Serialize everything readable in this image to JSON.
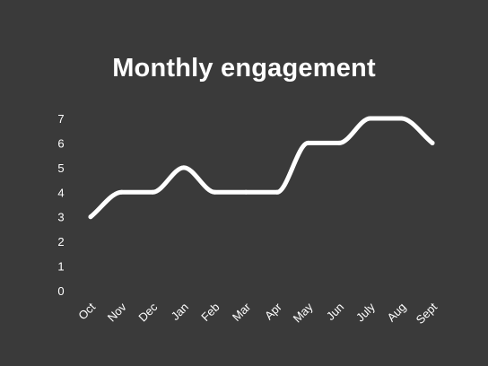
{
  "chart_data": {
    "type": "line",
    "title": "Monthly engagement",
    "categories": [
      "Oct",
      "Nov",
      "Dec",
      "Jan",
      "Feb",
      "Mar",
      "Apr",
      "May",
      "Jun",
      "July",
      "Aug",
      "Sept"
    ],
    "series": [
      {
        "values": [
          3,
          4,
          4,
          5,
          4,
          4,
          4,
          6,
          6,
          7,
          7,
          6
        ]
      }
    ],
    "yticks": [
      "0",
      "1",
      "2",
      "3",
      "4",
      "5",
      "6",
      "7"
    ],
    "ylim": [
      0,
      7
    ],
    "grid": false,
    "legend": "none",
    "colors": {
      "background": "#3a3a3a",
      "line": "#ffffff",
      "text": "#ffffff"
    }
  }
}
